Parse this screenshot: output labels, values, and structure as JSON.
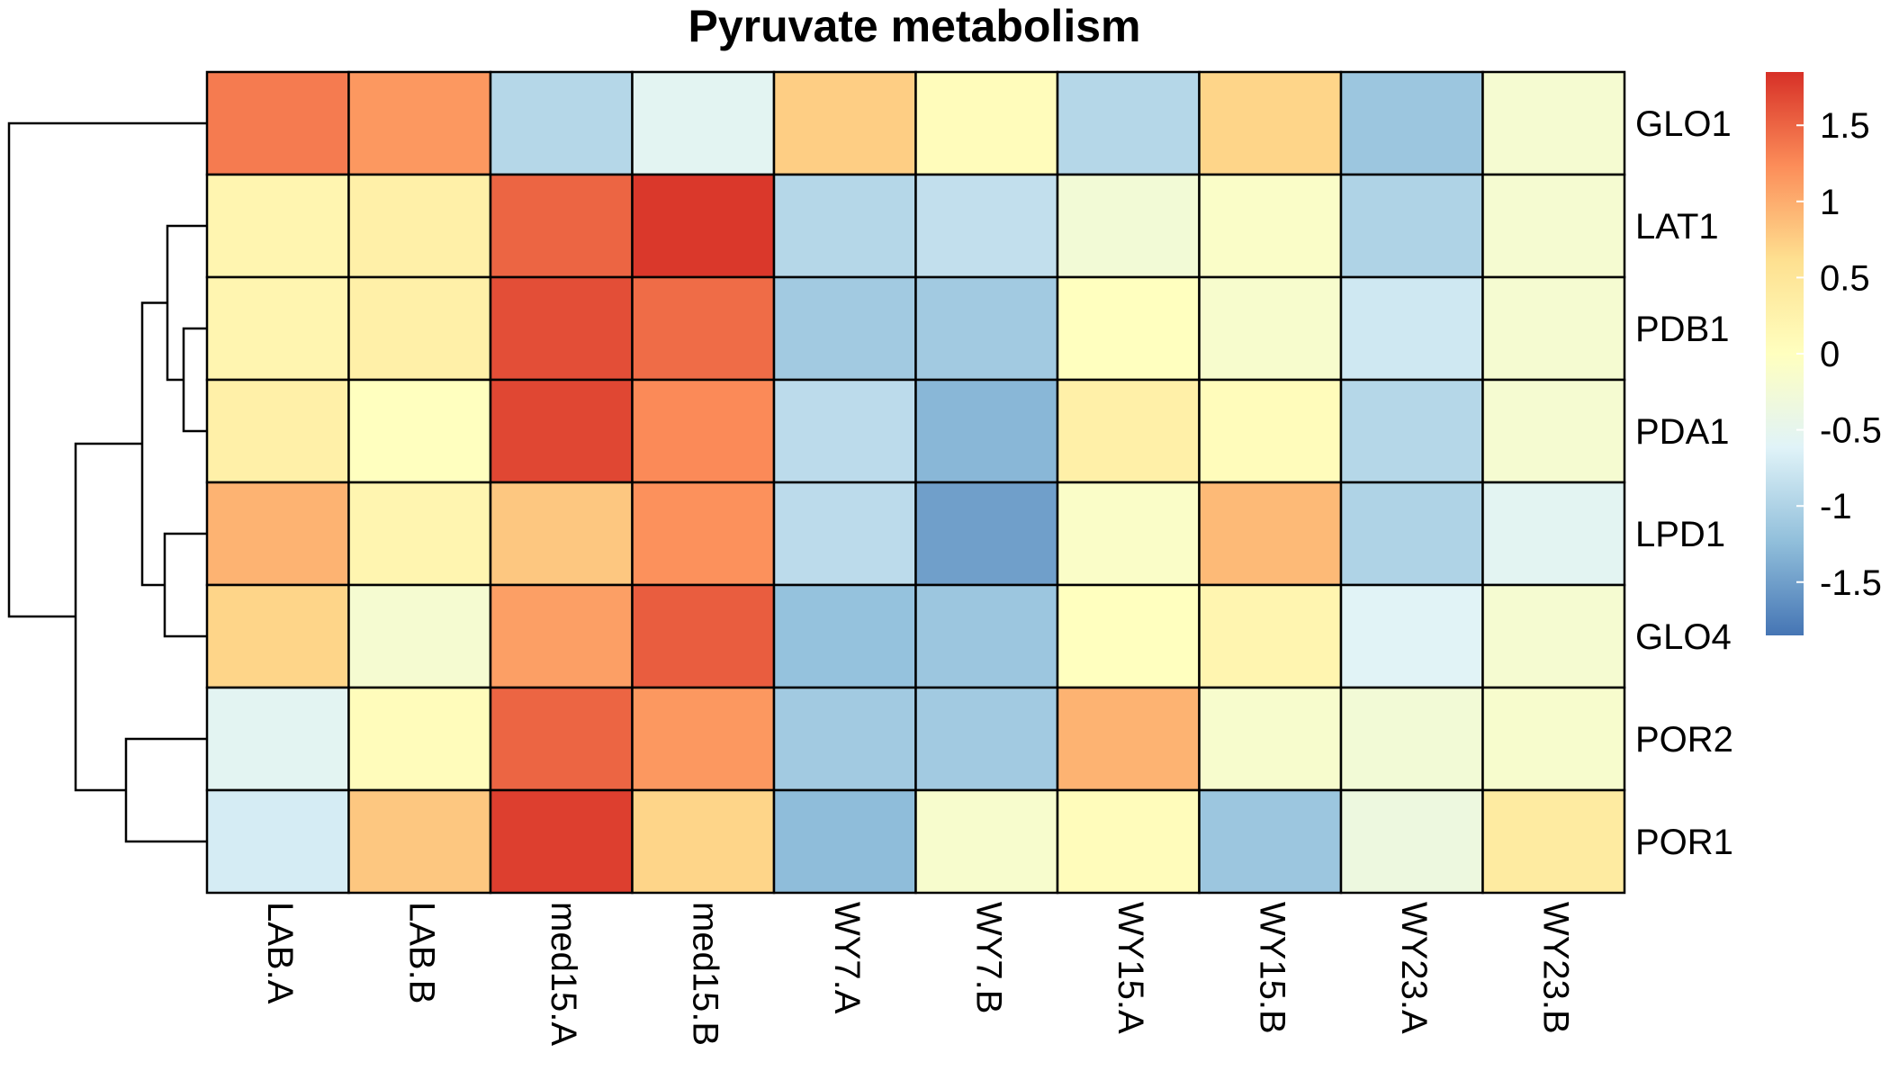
{
  "chart_data": {
    "type": "heatmap",
    "title": "Pyruvate metabolism",
    "columns": [
      "LAB.A",
      "LAB.B",
      "med15.A",
      "med15.B",
      "WY7.A",
      "WY7.B",
      "WY15.A",
      "WY15.B",
      "WY23.A",
      "WY23.B"
    ],
    "rows": [
      "GLO1",
      "LAT1",
      "PDB1",
      "PDA1",
      "LPD1",
      "GLO4",
      "POR2",
      "POR1"
    ],
    "values": [
      [
        1.35,
        1.15,
        -0.95,
        -0.55,
        0.75,
        0.05,
        -0.95,
        0.7,
        -1.15,
        -0.2
      ],
      [
        0.2,
        0.3,
        1.5,
        1.8,
        -0.95,
        -0.85,
        -0.25,
        -0.1,
        -1.0,
        -0.2
      ],
      [
        0.2,
        0.3,
        1.65,
        1.45,
        -1.1,
        -1.1,
        0.0,
        -0.15,
        -0.75,
        -0.2
      ],
      [
        0.3,
        0.0,
        1.7,
        1.25,
        -0.9,
        -1.3,
        0.3,
        0.05,
        -0.95,
        -0.2
      ],
      [
        0.95,
        0.2,
        0.8,
        1.2,
        -0.9,
        -1.5,
        -0.1,
        0.9,
        -1.0,
        -0.55
      ],
      [
        0.7,
        -0.2,
        1.1,
        1.55,
        -1.2,
        -1.15,
        0.0,
        0.2,
        -0.6,
        -0.2
      ],
      [
        -0.55,
        0.05,
        1.5,
        1.15,
        -1.1,
        -1.1,
        0.95,
        -0.15,
        -0.25,
        -0.15
      ],
      [
        -0.7,
        0.8,
        1.75,
        0.7,
        -1.25,
        -0.15,
        0.05,
        -1.15,
        -0.35,
        0.4
      ]
    ],
    "colorscale": {
      "min": -1.85,
      "max": 1.85,
      "colors": [
        "#4575B4",
        "#91BFDB",
        "#E0F3F8",
        "#FFFFBF",
        "#FEE090",
        "#FC8D59",
        "#D73027"
      ],
      "ticks": [
        1.5,
        1,
        0.5,
        0,
        -0.5,
        -1,
        -1.5
      ],
      "tick_labels": [
        "1.5",
        "1",
        "0.5",
        "0",
        "-0.5",
        "-1",
        "-1.5"
      ]
    },
    "row_dendrogram": "((GLO1),(((LAT1,(PDB1,PDA1)),(LPD1,GLO4)),(POR2,POR1)))",
    "legend_position": "right"
  }
}
